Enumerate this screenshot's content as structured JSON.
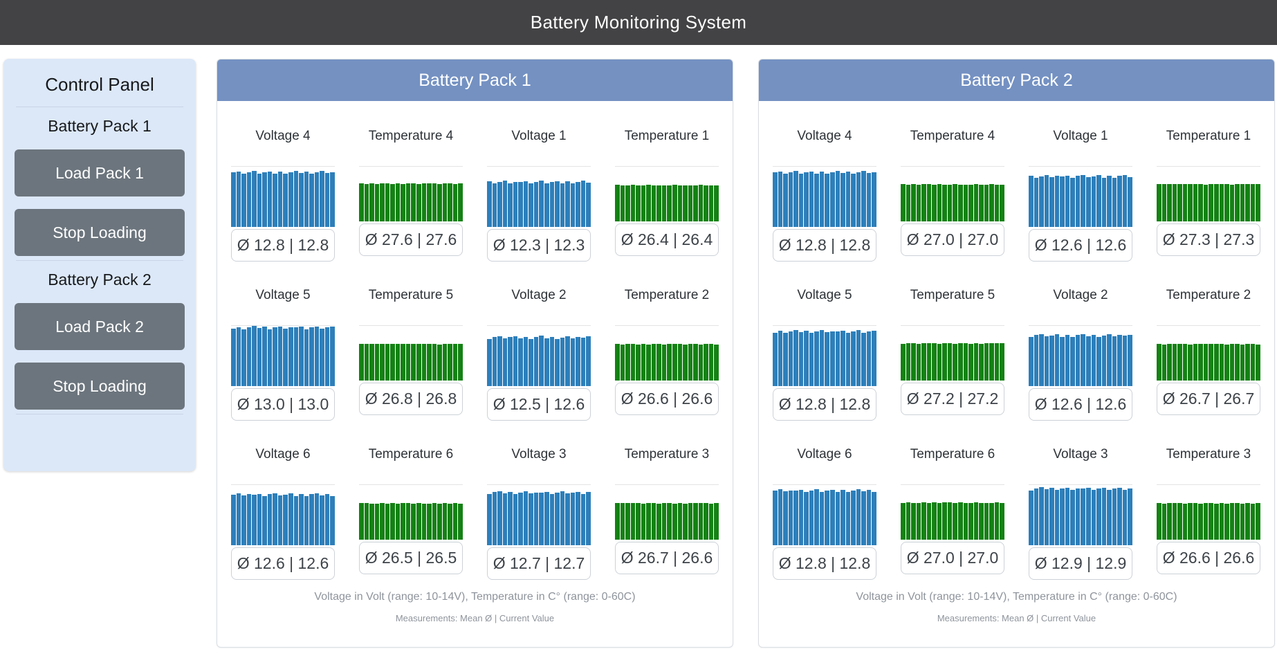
{
  "app": {
    "title": "Battery Monitoring System"
  },
  "colors": {
    "header_bg": "#434345",
    "pack_header_bg": "#7491c2",
    "control_panel_bg": "#dce8f8",
    "button_bg": "#6c757d",
    "voltage_bar": "#2d7fba",
    "temperature_bar": "#148214"
  },
  "control_panel": {
    "title": "Control Panel",
    "sections": [
      {
        "title": "Battery Pack 1",
        "buttons": [
          {
            "label": "Load Pack 1"
          },
          {
            "label": "Stop Loading"
          }
        ]
      },
      {
        "title": "Battery Pack 2",
        "buttons": [
          {
            "label": "Load Pack 2"
          },
          {
            "label": "Stop Loading"
          }
        ]
      }
    ]
  },
  "mean_symbol": "Ø",
  "value_separator": "|",
  "chart_type": "bar",
  "bars_per_chart": 20,
  "bar_noise": [
    0.1,
    0.45,
    -0.5,
    0.2,
    0.6,
    -0.35,
    0.15,
    0.5,
    -0.45,
    0.3,
    -0.6,
    0.25,
    0.7,
    -0.2,
    0.4,
    -0.55,
    0.1,
    0.6,
    -0.3,
    0.2
  ],
  "noise_amp": {
    "voltage": 0.12,
    "temperature": 0.4
  },
  "chart_scale": {
    "voltage": {
      "min": 10,
      "max": 13.1
    },
    "temperature": {
      "min": 0,
      "max": 40
    }
  },
  "packs": [
    {
      "title": "Battery Pack 1",
      "cells": [
        {
          "title": "Voltage 4",
          "type": "voltage",
          "mean": "12.8",
          "current": "12.8"
        },
        {
          "title": "Temperature 4",
          "type": "temperature",
          "mean": "27.6",
          "current": "27.6"
        },
        {
          "title": "Voltage 1",
          "type": "voltage",
          "mean": "12.3",
          "current": "12.3"
        },
        {
          "title": "Temperature 1",
          "type": "temperature",
          "mean": "26.4",
          "current": "26.4"
        },
        {
          "title": "Voltage 5",
          "type": "voltage",
          "mean": "13.0",
          "current": "13.0"
        },
        {
          "title": "Temperature 5",
          "type": "temperature",
          "mean": "26.8",
          "current": "26.8"
        },
        {
          "title": "Voltage 2",
          "type": "voltage",
          "mean": "12.5",
          "current": "12.6"
        },
        {
          "title": "Temperature 2",
          "type": "temperature",
          "mean": "26.6",
          "current": "26.6"
        },
        {
          "title": "Voltage 6",
          "type": "voltage",
          "mean": "12.6",
          "current": "12.6"
        },
        {
          "title": "Temperature 6",
          "type": "temperature",
          "mean": "26.5",
          "current": "26.5"
        },
        {
          "title": "Voltage 3",
          "type": "voltage",
          "mean": "12.7",
          "current": "12.7"
        },
        {
          "title": "Temperature 3",
          "type": "temperature",
          "mean": "26.7",
          "current": "26.6"
        }
      ],
      "footnote_line1": "Voltage in Volt (range: 10-14V), Temperature in C° (range: 0-60C)",
      "footnote_line2": "Measurements: Mean Ø | Current Value"
    },
    {
      "title": "Battery Pack 2",
      "cells": [
        {
          "title": "Voltage 4",
          "type": "voltage",
          "mean": "12.8",
          "current": "12.8"
        },
        {
          "title": "Temperature 4",
          "type": "temperature",
          "mean": "27.0",
          "current": "27.0"
        },
        {
          "title": "Voltage 1",
          "type": "voltage",
          "mean": "12.6",
          "current": "12.6"
        },
        {
          "title": "Temperature 1",
          "type": "temperature",
          "mean": "27.3",
          "current": "27.3"
        },
        {
          "title": "Voltage 5",
          "type": "voltage",
          "mean": "12.8",
          "current": "12.8"
        },
        {
          "title": "Temperature 5",
          "type": "temperature",
          "mean": "27.2",
          "current": "27.2"
        },
        {
          "title": "Voltage 2",
          "type": "voltage",
          "mean": "12.6",
          "current": "12.6"
        },
        {
          "title": "Temperature 2",
          "type": "temperature",
          "mean": "26.7",
          "current": "26.7"
        },
        {
          "title": "Voltage 6",
          "type": "voltage",
          "mean": "12.8",
          "current": "12.8"
        },
        {
          "title": "Temperature 6",
          "type": "temperature",
          "mean": "27.0",
          "current": "27.0"
        },
        {
          "title": "Voltage 3",
          "type": "voltage",
          "mean": "12.9",
          "current": "12.9"
        },
        {
          "title": "Temperature 3",
          "type": "temperature",
          "mean": "26.6",
          "current": "26.6"
        }
      ],
      "footnote_line1": "Voltage in Volt (range: 10-14V), Temperature in C° (range: 0-60C)",
      "footnote_line2": "Measurements: Mean Ø | Current Value"
    }
  ]
}
